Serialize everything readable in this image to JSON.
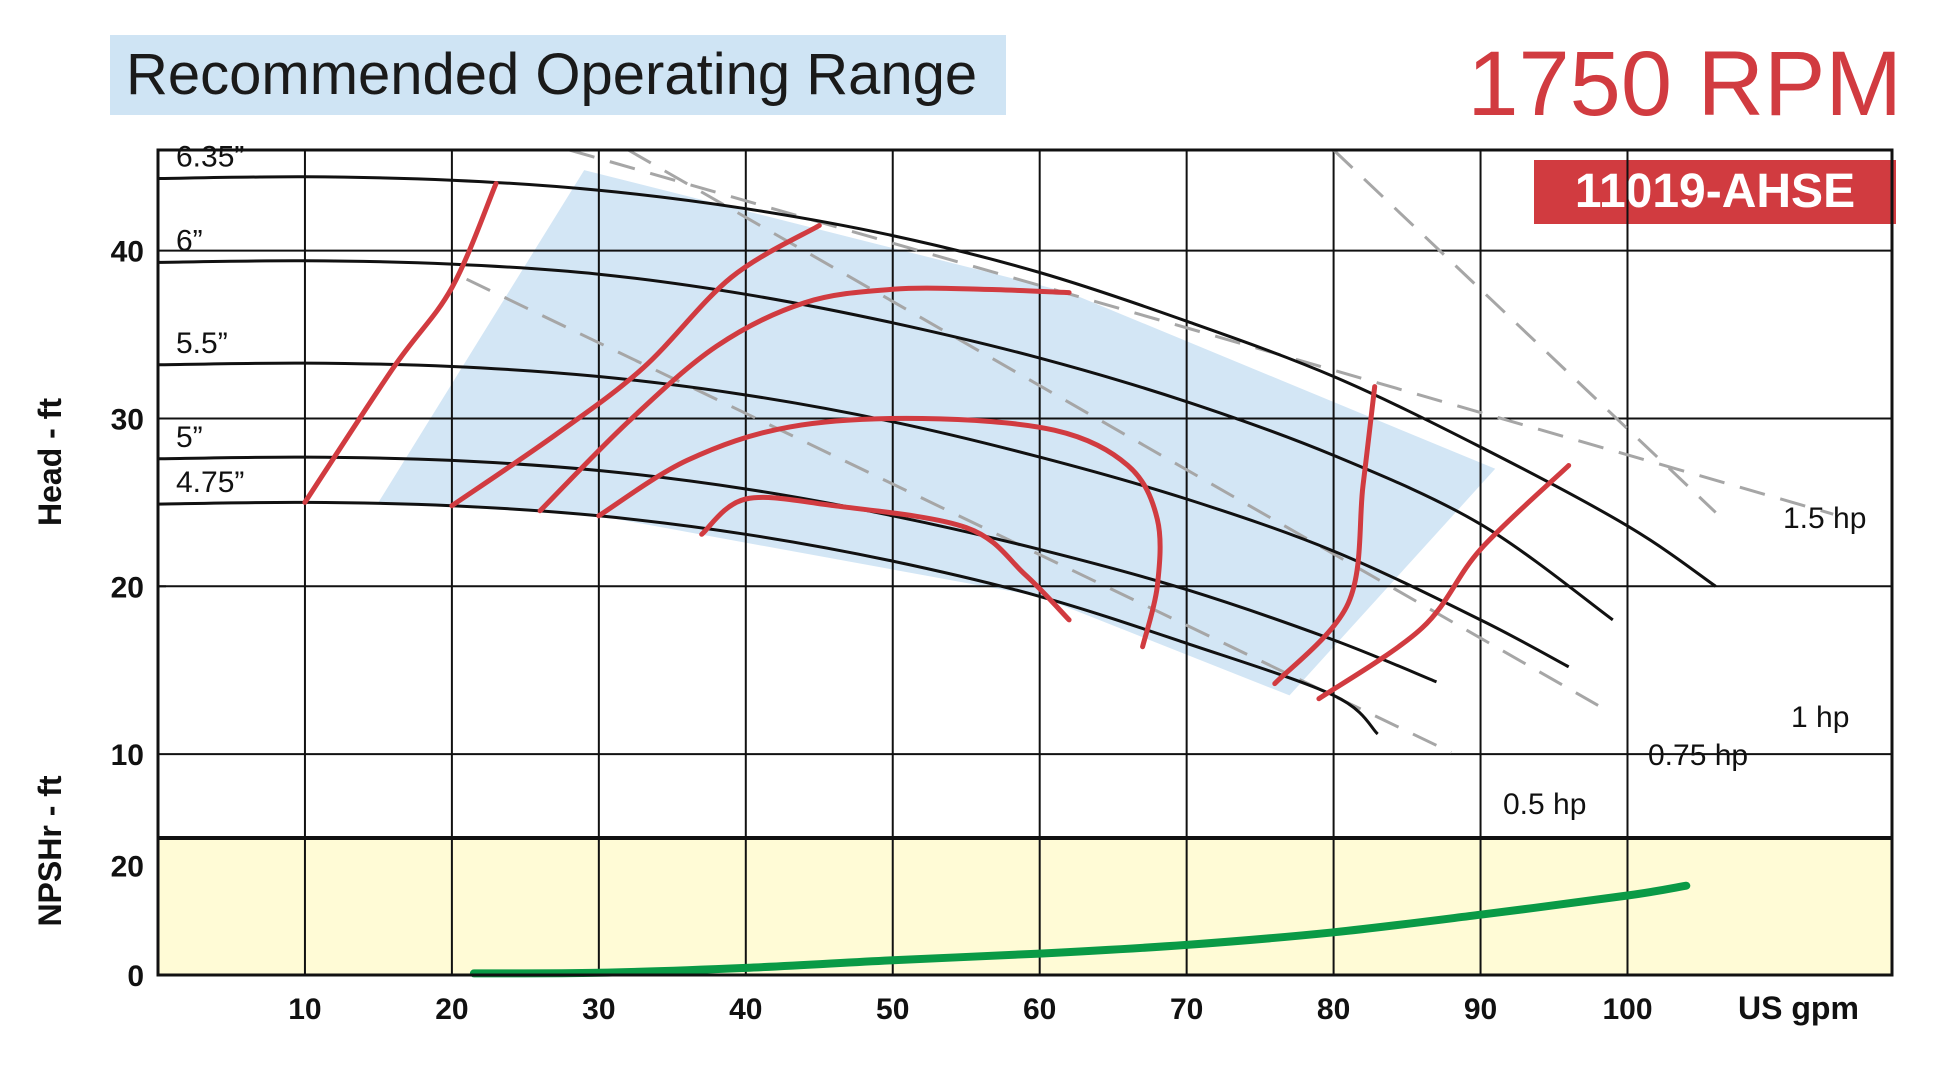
{
  "header": {
    "title": "Recommended Operating Range",
    "rpm": "1750 RPM",
    "model": "11019-AHSE"
  },
  "colors": {
    "title_bg": "#cfe4f4",
    "accent_red": "#d13b40",
    "range_fill": "#d3e6f5",
    "npsh_bg": "#fffbd6",
    "npsh_line": "#0a9a46",
    "hp_dash": "#a6a6a6"
  },
  "chart_data": {
    "type": "line",
    "xlabel": "US gpm",
    "x_ticks": [
      10,
      20,
      30,
      40,
      50,
      60,
      70,
      80,
      90,
      100
    ],
    "xlim": [
      0,
      118
    ],
    "head_panel": {
      "ylabel": "Head - ft",
      "ylim": [
        5,
        46
      ],
      "y_ticks": [
        10,
        20,
        30,
        40
      ],
      "impeller_curves": [
        {
          "name": "6.35”",
          "points": [
            [
              0,
              44.3
            ],
            [
              10,
              44.4
            ],
            [
              20,
              44.2
            ],
            [
              30,
              43.6
            ],
            [
              40,
              42.5
            ],
            [
              50,
              40.9
            ],
            [
              60,
              38.7
            ],
            [
              70,
              35.8
            ],
            [
              80,
              32.5
            ],
            [
              90,
              28.3
            ],
            [
              100,
              23.6
            ],
            [
              106,
              20.0
            ]
          ]
        },
        {
          "name": "6”",
          "points": [
            [
              0,
              39.3
            ],
            [
              10,
              39.4
            ],
            [
              20,
              39.2
            ],
            [
              30,
              38.6
            ],
            [
              40,
              37.4
            ],
            [
              50,
              35.7
            ],
            [
              60,
              33.6
            ],
            [
              70,
              31.0
            ],
            [
              80,
              27.8
            ],
            [
              90,
              23.7
            ],
            [
              99,
              18.0
            ]
          ]
        },
        {
          "name": "5.5”",
          "points": [
            [
              0,
              33.2
            ],
            [
              10,
              33.3
            ],
            [
              20,
              33.1
            ],
            [
              30,
              32.5
            ],
            [
              40,
              31.4
            ],
            [
              50,
              29.8
            ],
            [
              60,
              27.7
            ],
            [
              70,
              25.2
            ],
            [
              80,
              22.1
            ],
            [
              90,
              18.0
            ],
            [
              96,
              15.2
            ]
          ]
        },
        {
          "name": "5”",
          "points": [
            [
              0,
              27.6
            ],
            [
              10,
              27.7
            ],
            [
              20,
              27.5
            ],
            [
              30,
              26.9
            ],
            [
              40,
              25.8
            ],
            [
              50,
              24.2
            ],
            [
              60,
              22.2
            ],
            [
              70,
              19.8
            ],
            [
              80,
              16.8
            ],
            [
              87,
              14.3
            ]
          ]
        },
        {
          "name": "4.75”",
          "points": [
            [
              0,
              24.9
            ],
            [
              10,
              25.0
            ],
            [
              20,
              24.8
            ],
            [
              30,
              24.2
            ],
            [
              40,
              23.1
            ],
            [
              50,
              21.5
            ],
            [
              60,
              19.4
            ],
            [
              70,
              16.6
            ],
            [
              80,
              13.5
            ],
            [
              83,
              11.2
            ]
          ]
        }
      ],
      "horsepower_lines": [
        {
          "name": "1.5 hp",
          "points": [
            [
              28,
              46.0
            ],
            [
              114,
              24.3
            ]
          ]
        },
        {
          "name": "1 hp",
          "points": [
            [
              80,
              46.0
            ],
            [
              106,
              24.4
            ]
          ]
        },
        {
          "name": "0.75 hp",
          "points": [
            [
              32,
              46.0
            ],
            [
              98,
              12.9
            ]
          ]
        },
        {
          "name": "0.5 hp",
          "points": [
            [
              21,
              38.3
            ],
            [
              88,
              10.1
            ]
          ]
        }
      ],
      "efficiency_contours": [
        [
          [
            10,
            25.0
          ],
          [
            16,
            33.0
          ],
          [
            20,
            37.8
          ],
          [
            23,
            44.0
          ]
        ],
        [
          [
            20,
            24.8
          ],
          [
            27,
            29.0
          ],
          [
            33,
            33.0
          ],
          [
            39,
            38.4
          ],
          [
            45,
            41.5
          ]
        ],
        [
          [
            26,
            24.5
          ],
          [
            32,
            29.8
          ],
          [
            38,
            34.3
          ],
          [
            44,
            36.9
          ],
          [
            50,
            37.7
          ],
          [
            56,
            37.7
          ],
          [
            62,
            37.5
          ]
        ],
        [
          [
            30,
            24.2
          ],
          [
            36,
            27.5
          ],
          [
            43,
            29.5
          ],
          [
            52,
            30.0
          ],
          [
            61,
            29.3
          ],
          [
            66,
            27.2
          ],
          [
            68,
            24.0
          ],
          [
            68,
            20.0
          ],
          [
            67,
            16.4
          ]
        ],
        [
          [
            37,
            23.1
          ],
          [
            40,
            25.2
          ],
          [
            46,
            24.8
          ],
          [
            55,
            23.5
          ],
          [
            59,
            20.7
          ],
          [
            62,
            18.0
          ]
        ],
        [
          [
            76,
            14.2
          ],
          [
            81,
            19.0
          ],
          [
            82,
            26.0
          ],
          [
            82.8,
            31.9
          ]
        ],
        [
          [
            79,
            13.3
          ],
          [
            86,
            17.5
          ],
          [
            90,
            22.2
          ],
          [
            96,
            27.2
          ]
        ]
      ],
      "recommended_range": [
        [
          15,
          25.0
        ],
        [
          29,
          44.8
        ],
        [
          62,
          37.5
        ],
        [
          91,
          27.0
        ],
        [
          77,
          13.5
        ],
        [
          60,
          19.4
        ],
        [
          30,
          24.2
        ]
      ]
    },
    "npsh_panel": {
      "ylabel": "NPSHr - ft",
      "ylim": [
        0,
        25
      ],
      "y_ticks": [
        0,
        20
      ],
      "curve": [
        [
          21.5,
          0.3
        ],
        [
          30,
          0.4
        ],
        [
          40,
          1.3
        ],
        [
          50,
          2.7
        ],
        [
          60,
          3.9
        ],
        [
          70,
          5.5
        ],
        [
          80,
          7.8
        ],
        [
          90,
          11.0
        ],
        [
          100,
          14.5
        ],
        [
          104,
          16.3
        ]
      ]
    }
  }
}
